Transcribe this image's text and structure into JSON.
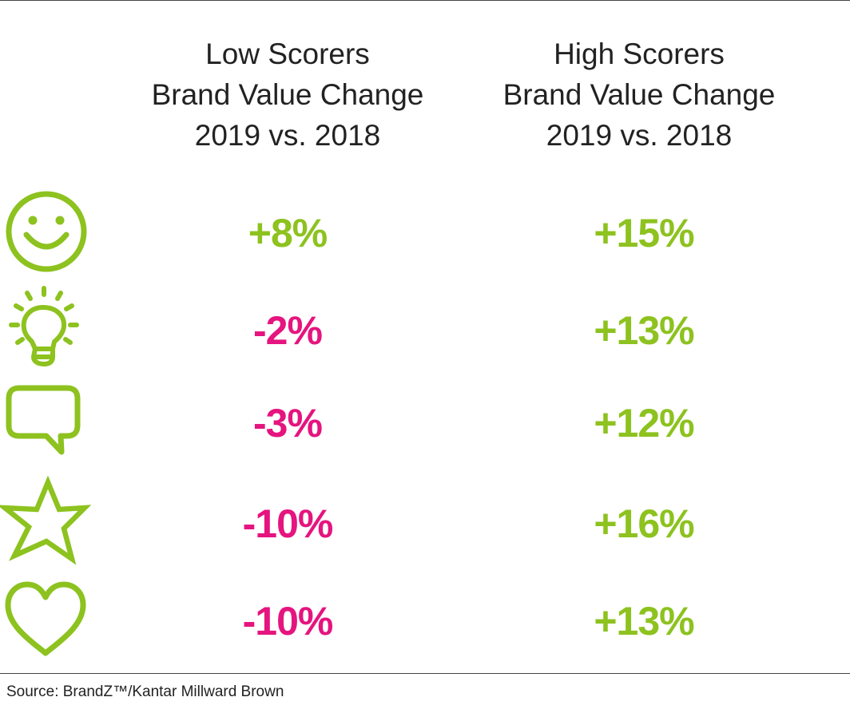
{
  "colors": {
    "positive": "#8dc21f",
    "negative": "#e5147f",
    "icon": "#8dc21f"
  },
  "headers": {
    "low": [
      "Low Scorers",
      "Brand Value Change",
      "2019 vs. 2018"
    ],
    "high": [
      "High Scorers",
      "Brand Value Change",
      "2019 vs. 2018"
    ]
  },
  "rows": [
    {
      "icon": "smiley-icon",
      "low": "+8%",
      "high": "+15%"
    },
    {
      "icon": "lightbulb-icon",
      "low": "-2%",
      "high": "+13%"
    },
    {
      "icon": "speech-bubble-icon",
      "low": "-3%",
      "high": "+12%"
    },
    {
      "icon": "star-icon",
      "low": "-10%",
      "high": "+16%"
    },
    {
      "icon": "heart-icon",
      "low": "-10%",
      "high": "+13%"
    }
  ],
  "source": "Source: BrandZ™/Kantar Millward Brown",
  "chart_data": {
    "type": "table",
    "columns": [
      "Low Scorers Brand Value Change 2019 vs. 2018",
      "High Scorers Brand Value Change 2019 vs. 2018"
    ],
    "series": [
      {
        "name": "Low Scorers",
        "values": [
          8,
          -2,
          -3,
          -10,
          -10
        ]
      },
      {
        "name": "High Scorers",
        "values": [
          15,
          13,
          12,
          16,
          13
        ]
      }
    ],
    "units": "%"
  }
}
